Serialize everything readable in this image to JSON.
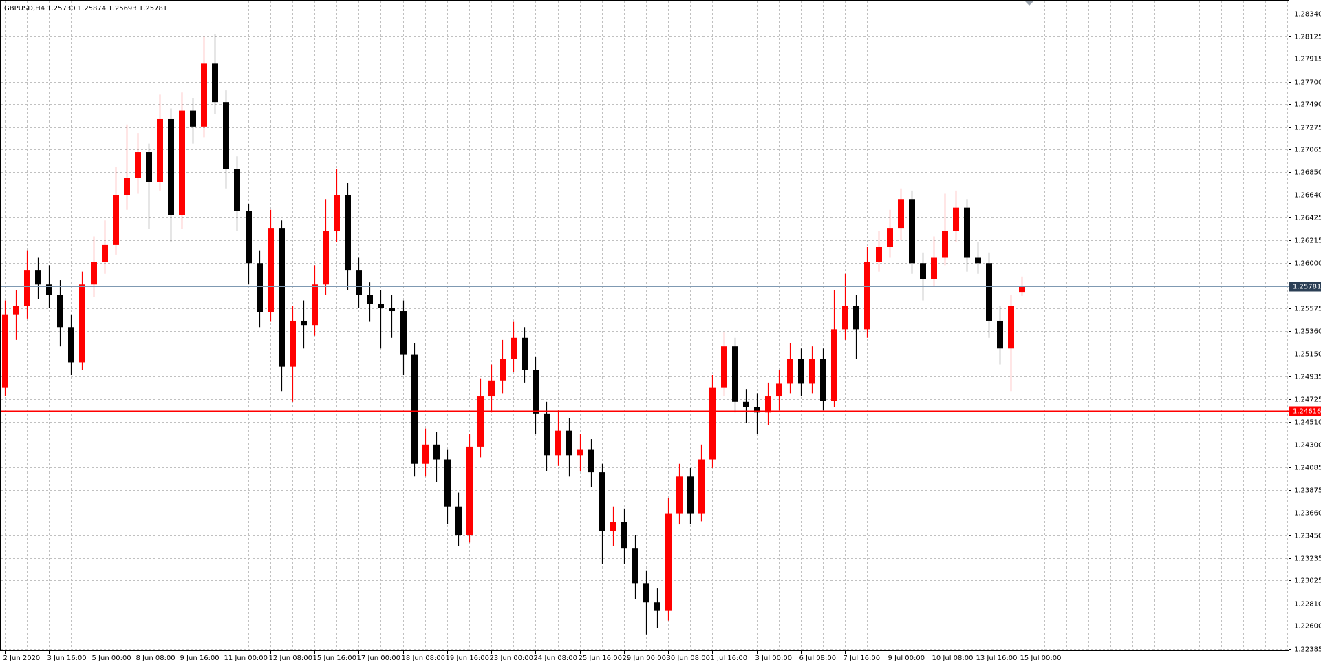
{
  "chart_data": {
    "type": "candlestick",
    "title": "GBPUSD,H4  1.25730 1.25874 1.25693 1.25781",
    "up_color": "#ff0000",
    "down_color": "#000000",
    "grid": true,
    "ylim": [
      1.2237,
      1.2844
    ],
    "yticks": [
      {
        "value": 1.2834,
        "label": "1.28340"
      },
      {
        "value": 1.28125,
        "label": "1.28125"
      },
      {
        "value": 1.27915,
        "label": "1.27915"
      },
      {
        "value": 1.277,
        "label": "1.27700"
      },
      {
        "value": 1.2749,
        "label": "1.27490"
      },
      {
        "value": 1.27275,
        "label": "1.27275"
      },
      {
        "value": 1.27065,
        "label": "1.27065"
      },
      {
        "value": 1.2685,
        "label": "1.26850"
      },
      {
        "value": 1.2664,
        "label": "1.26640"
      },
      {
        "value": 1.26425,
        "label": "1.26425"
      },
      {
        "value": 1.26215,
        "label": "1.26215"
      },
      {
        "value": 1.26,
        "label": "1.26000"
      },
      {
        "value": 1.25575,
        "label": "1.25575"
      },
      {
        "value": 1.2536,
        "label": "1.25360"
      },
      {
        "value": 1.2515,
        "label": "1.25150"
      },
      {
        "value": 1.24935,
        "label": "1.24935"
      },
      {
        "value": 1.24725,
        "label": "1.24725"
      },
      {
        "value": 1.2451,
        "label": "1.24510"
      },
      {
        "value": 1.243,
        "label": "1.24300"
      },
      {
        "value": 1.24085,
        "label": "1.24085"
      },
      {
        "value": 1.23875,
        "label": "1.23875"
      },
      {
        "value": 1.2366,
        "label": "1.23660"
      },
      {
        "value": 1.2345,
        "label": "1.23450"
      },
      {
        "value": 1.23235,
        "label": "1.23235"
      },
      {
        "value": 1.23025,
        "label": "1.23025"
      },
      {
        "value": 1.2281,
        "label": "1.22810"
      },
      {
        "value": 1.226,
        "label": "1.22600"
      },
      {
        "value": 1.22385,
        "label": "1.22385"
      }
    ],
    "price_line": {
      "value": 1.25781,
      "label": "1.25781",
      "color": "#7f99b2",
      "label_color": "#2b3f55"
    },
    "hline": {
      "value": 1.24616,
      "label": "1.24616",
      "color": "#ff0000"
    },
    "categories": [
      "2 Jun 2020",
      null,
      null,
      null,
      "3 Jun 16:00",
      null,
      null,
      null,
      "5 Jun 00:00",
      null,
      null,
      null,
      "8 Jun 08:00",
      null,
      null,
      null,
      "9 Jun 16:00",
      null,
      null,
      null,
      "11 Jun 00:00",
      null,
      null,
      null,
      "12 Jun 08:00",
      null,
      null,
      null,
      "15 Jun 16:00",
      null,
      null,
      null,
      "17 Jun 00:00",
      null,
      null,
      null,
      "18 Jun 08:00",
      null,
      null,
      null,
      "19 Jun 16:00",
      null,
      null,
      null,
      "23 Jun 00:00",
      null,
      null,
      null,
      "24 Jun 08:00",
      null,
      null,
      null,
      "25 Jun 16:00",
      null,
      null,
      null,
      "29 Jun 00:00",
      null,
      null,
      null,
      "30 Jun 08:00",
      null,
      null,
      null,
      "1 Jul 16:00",
      null,
      null,
      null,
      "3 Jul 00:00",
      null,
      null,
      null,
      "6 Jul 08:00",
      null,
      null,
      null,
      "7 Jul 16:00",
      null,
      null,
      null,
      "9 Jul 00:00",
      null,
      null,
      null,
      "10 Jul 08:00",
      null,
      null,
      null,
      "13 Jul 16:00",
      null,
      null,
      null,
      "15 Jul 00:00"
    ],
    "ohlc": [
      [
        1.2483,
        1.2565,
        1.2475,
        1.2552
      ],
      [
        1.2552,
        1.2575,
        1.2528,
        1.256
      ],
      [
        1.256,
        1.2612,
        1.2548,
        1.2593
      ],
      [
        1.2593,
        1.2605,
        1.2566,
        1.258
      ],
      [
        1.258,
        1.2598,
        1.2558,
        1.257
      ],
      [
        1.257,
        1.2584,
        1.2522,
        1.254
      ],
      [
        1.254,
        1.2552,
        1.2495,
        1.2507
      ],
      [
        1.2507,
        1.2592,
        1.25,
        1.258
      ],
      [
        1.258,
        1.2625,
        1.2568,
        1.2601
      ],
      [
        1.2601,
        1.264,
        1.259,
        1.2617
      ],
      [
        1.2617,
        1.269,
        1.2608,
        1.2664
      ],
      [
        1.2664,
        1.273,
        1.265,
        1.268
      ],
      [
        1.268,
        1.2722,
        1.2665,
        1.2704
      ],
      [
        1.2704,
        1.2712,
        1.2632,
        1.2676
      ],
      [
        1.2676,
        1.2758,
        1.2668,
        1.2735
      ],
      [
        1.2735,
        1.2745,
        1.262,
        1.2645
      ],
      [
        1.2645,
        1.276,
        1.2632,
        1.2743
      ],
      [
        1.2743,
        1.2755,
        1.2712,
        1.2728
      ],
      [
        1.2728,
        1.2812,
        1.2718,
        1.2787
      ],
      [
        1.2787,
        1.2815,
        1.274,
        1.2751
      ],
      [
        1.2751,
        1.2762,
        1.267,
        1.2688
      ],
      [
        1.2688,
        1.27,
        1.263,
        1.2649
      ],
      [
        1.2649,
        1.2655,
        1.258,
        1.26
      ],
      [
        1.26,
        1.2612,
        1.254,
        1.2554
      ],
      [
        1.2554,
        1.265,
        1.2545,
        1.2633
      ],
      [
        1.2633,
        1.264,
        1.248,
        1.2503
      ],
      [
        1.2503,
        1.256,
        1.247,
        1.2546
      ],
      [
        1.2546,
        1.2565,
        1.252,
        1.2542
      ],
      [
        1.2542,
        1.2598,
        1.2532,
        1.258
      ],
      [
        1.258,
        1.266,
        1.257,
        1.263
      ],
      [
        1.263,
        1.2688,
        1.262,
        1.2664
      ],
      [
        1.2664,
        1.2675,
        1.2575,
        1.2593
      ],
      [
        1.2593,
        1.2605,
        1.2558,
        1.257
      ],
      [
        1.257,
        1.2582,
        1.2545,
        1.2562
      ],
      [
        1.2562,
        1.2575,
        1.252,
        1.2558
      ],
      [
        1.2558,
        1.257,
        1.253,
        1.2555
      ],
      [
        1.2555,
        1.2565,
        1.2495,
        1.2514
      ],
      [
        1.2514,
        1.2525,
        1.24,
        1.2412
      ],
      [
        1.2412,
        1.2445,
        1.24,
        1.243
      ],
      [
        1.243,
        1.2442,
        1.2395,
        1.2416
      ],
      [
        1.2416,
        1.2425,
        1.2355,
        1.2372
      ],
      [
        1.2372,
        1.2385,
        1.2335,
        1.2345
      ],
      [
        1.2345,
        1.244,
        1.2338,
        1.2428
      ],
      [
        1.2428,
        1.2492,
        1.2418,
        1.2475
      ],
      [
        1.2475,
        1.2505,
        1.246,
        1.249
      ],
      [
        1.249,
        1.2528,
        1.2478,
        1.251
      ],
      [
        1.251,
        1.2545,
        1.2498,
        1.253
      ],
      [
        1.253,
        1.254,
        1.2488,
        1.25
      ],
      [
        1.25,
        1.2512,
        1.244,
        1.2459
      ],
      [
        1.2459,
        1.247,
        1.2405,
        1.242
      ],
      [
        1.242,
        1.2462,
        1.241,
        1.2443
      ],
      [
        1.2443,
        1.2455,
        1.24,
        1.242
      ],
      [
        1.242,
        1.244,
        1.2405,
        1.2425
      ],
      [
        1.2425,
        1.2435,
        1.239,
        1.2404
      ],
      [
        1.2404,
        1.2412,
        1.2318,
        1.2349
      ],
      [
        1.2349,
        1.2372,
        1.2335,
        1.2357
      ],
      [
        1.2357,
        1.237,
        1.2318,
        1.2333
      ],
      [
        1.2333,
        1.2345,
        1.2285,
        1.23
      ],
      [
        1.23,
        1.2312,
        1.2252,
        1.2282
      ],
      [
        1.2282,
        1.2295,
        1.2258,
        1.2274
      ],
      [
        1.2274,
        1.238,
        1.2265,
        1.2365
      ],
      [
        1.2365,
        1.2412,
        1.2355,
        1.24
      ],
      [
        1.24,
        1.2408,
        1.2355,
        1.2365
      ],
      [
        1.2365,
        1.243,
        1.2358,
        1.2416
      ],
      [
        1.2416,
        1.2495,
        1.2408,
        1.2483
      ],
      [
        1.2483,
        1.2535,
        1.2475,
        1.2522
      ],
      [
        1.2522,
        1.253,
        1.246,
        1.247
      ],
      [
        1.247,
        1.2482,
        1.245,
        1.2465
      ],
      [
        1.2465,
        1.2478,
        1.244,
        1.246
      ],
      [
        1.246,
        1.2488,
        1.2448,
        1.2475
      ],
      [
        1.2475,
        1.25,
        1.2462,
        1.2487
      ],
      [
        1.2487,
        1.2525,
        1.2478,
        1.251
      ],
      [
        1.251,
        1.252,
        1.2475,
        1.2487
      ],
      [
        1.2487,
        1.2522,
        1.2478,
        1.251
      ],
      [
        1.251,
        1.252,
        1.2462,
        1.2471
      ],
      [
        1.2471,
        1.2575,
        1.2465,
        1.2538
      ],
      [
        1.2538,
        1.259,
        1.2528,
        1.256
      ],
      [
        1.256,
        1.257,
        1.251,
        1.2538
      ],
      [
        1.2538,
        1.2615,
        1.253,
        1.2601
      ],
      [
        1.2601,
        1.263,
        1.2592,
        1.2615
      ],
      [
        1.2615,
        1.265,
        1.2605,
        1.2633
      ],
      [
        1.2633,
        1.267,
        1.2622,
        1.266
      ],
      [
        1.266,
        1.2668,
        1.259,
        1.26
      ],
      [
        1.26,
        1.261,
        1.2565,
        1.2585
      ],
      [
        1.2585,
        1.2625,
        1.2578,
        1.2605
      ],
      [
        1.2605,
        1.2665,
        1.2598,
        1.263
      ],
      [
        1.263,
        1.2668,
        1.262,
        1.2652
      ],
      [
        1.2652,
        1.266,
        1.2592,
        1.2605
      ],
      [
        1.2605,
        1.262,
        1.259,
        1.26
      ],
      [
        1.26,
        1.261,
        1.253,
        1.2546
      ],
      [
        1.2546,
        1.256,
        1.2505,
        1.252
      ],
      [
        1.252,
        1.257,
        1.248,
        1.256
      ],
      [
        1.2573,
        1.25874,
        1.25693,
        1.25781
      ]
    ]
  }
}
